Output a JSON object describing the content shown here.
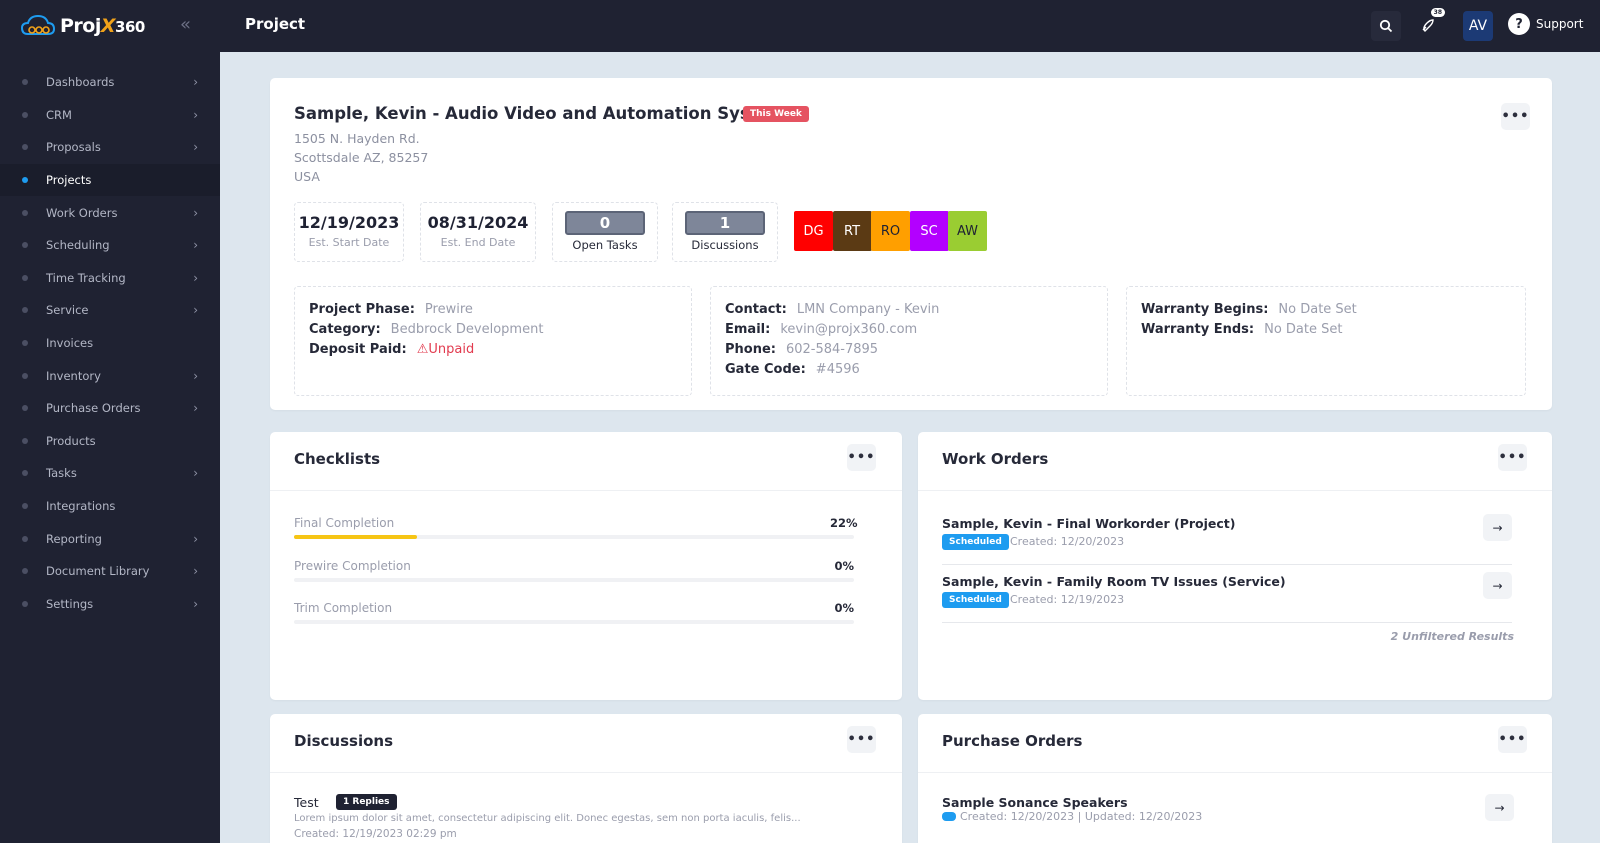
{
  "app": {
    "brand_prefix": "Proj",
    "brand_x": "X",
    "brand_suffix": "360",
    "page_title": "Project",
    "notification_count": "38",
    "avatar_initials": "AV",
    "support_label": "Support"
  },
  "sidebar": {
    "items": [
      {
        "label": "Dashboards",
        "has_children": true,
        "active": false
      },
      {
        "label": "CRM",
        "has_children": true,
        "active": false
      },
      {
        "label": "Proposals",
        "has_children": true,
        "active": false
      },
      {
        "label": "Projects",
        "has_children": false,
        "active": true
      },
      {
        "label": "Work Orders",
        "has_children": true,
        "active": false
      },
      {
        "label": "Scheduling",
        "has_children": true,
        "active": false
      },
      {
        "label": "Time Tracking",
        "has_children": true,
        "active": false
      },
      {
        "label": "Service",
        "has_children": true,
        "active": false
      },
      {
        "label": "Invoices",
        "has_children": false,
        "active": false
      },
      {
        "label": "Inventory",
        "has_children": true,
        "active": false
      },
      {
        "label": "Purchase Orders",
        "has_children": true,
        "active": false
      },
      {
        "label": "Products",
        "has_children": false,
        "active": false
      },
      {
        "label": "Tasks",
        "has_children": true,
        "active": false
      },
      {
        "label": "Integrations",
        "has_children": false,
        "active": false
      },
      {
        "label": "Reporting",
        "has_children": true,
        "active": false
      },
      {
        "label": "Document Library",
        "has_children": true,
        "active": false
      },
      {
        "label": "Settings",
        "has_children": true,
        "active": false
      }
    ]
  },
  "project": {
    "title": "Sample, Kevin - Audio Video and Automation System",
    "badge": "This Week",
    "address_line1": "1505 N. Hayden Rd.",
    "address_line2": "Scottsdale AZ, 85257",
    "address_line3": "USA",
    "start_date": "12/19/2023",
    "start_label": "Est. Start Date",
    "end_date": "08/31/2024",
    "end_label": "Est. End Date",
    "open_tasks": "0",
    "open_tasks_label": "Open Tasks",
    "discussions": "1",
    "discussions_label": "Discussions",
    "tags": [
      {
        "text": "DG",
        "bg": "#ff0000",
        "fg": "#ffffff"
      },
      {
        "text": "RT",
        "bg": "#5b3a14",
        "fg": "#ffffff"
      },
      {
        "text": "RO",
        "bg": "#ff9f00",
        "fg": "#1f2233"
      },
      {
        "text": "SC",
        "bg": "#b300ff",
        "fg": "#ffffff"
      },
      {
        "text": "AW",
        "bg": "#9acd32",
        "fg": "#1f2233"
      }
    ],
    "phase_key": "Project Phase:",
    "phase": "Prewire",
    "category_key": "Category:",
    "category": "Bedbrock Development",
    "deposit_key": "Deposit Paid:",
    "deposit": "Unpaid",
    "contact_key": "Contact:",
    "contact": "LMN Company - Kevin",
    "email_key": "Email:",
    "email": "kevin@projx360.com",
    "phone_key": "Phone:",
    "phone": "602-584-7895",
    "gate_key": "Gate Code:",
    "gate": "#4596",
    "warranty_begins_key": "Warranty Begins:",
    "warranty_begins": "No Date Set",
    "warranty_ends_key": "Warranty Ends:",
    "warranty_ends": "No Date Set"
  },
  "checklists": {
    "title": "Checklists",
    "items": [
      {
        "label": "Final Completion",
        "pct": "22%",
        "fraction": 0.22
      },
      {
        "label": "Prewire Completion",
        "pct": "0%",
        "fraction": 0
      },
      {
        "label": "Trim Completion",
        "pct": "0%",
        "fraction": 0
      }
    ]
  },
  "work_orders": {
    "title": "Work Orders",
    "items": [
      {
        "name": "Sample, Kevin - Final Workorder (Project)",
        "status": "Scheduled",
        "created": "Created: 12/20/2023"
      },
      {
        "name": "Sample, Kevin - Family Room TV Issues (Service)",
        "status": "Scheduled",
        "created": "Created: 12/19/2023"
      }
    ],
    "summary": "2 Unfiltered Results"
  },
  "discussions": {
    "title": "Discussions",
    "name": "Test",
    "replies": "1 Replies",
    "body": "Lorem ipsum dolor sit amet, consectetur adipiscing elit. Donec egestas, sem non porta iaculis, felis...",
    "created": "Created: 12/19/2023 02:29 pm"
  },
  "purchase_orders": {
    "title": "Purchase Orders",
    "name": "Sample Sonance Speakers",
    "meta": "Created: 12/20/2023 | Updated: 12/20/2023"
  }
}
